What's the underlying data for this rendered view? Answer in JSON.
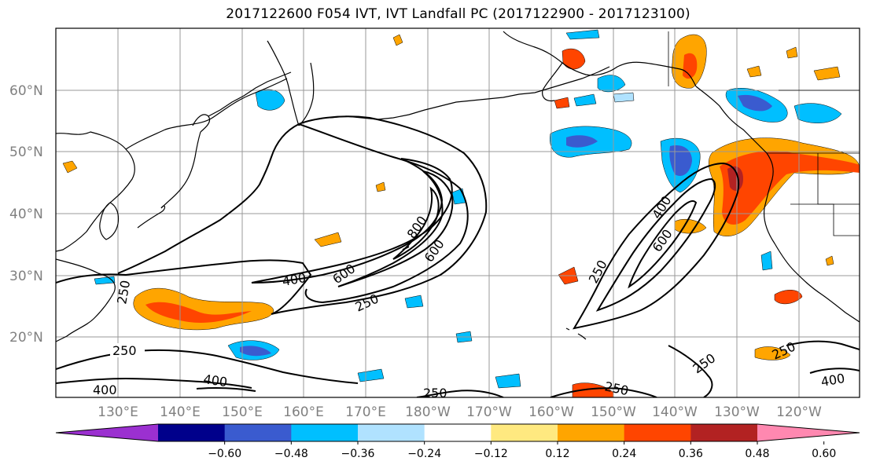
{
  "title": "2017122600 F054 IVT, IVT Landfall PC (2017122900 - 2017123100)",
  "latitudes": [
    "60°N",
    "50°N",
    "40°N",
    "30°N",
    "20°N"
  ],
  "longitudes": [
    "130°E",
    "140°E",
    "150°E",
    "160°E",
    "170°E",
    "180°W",
    "170°W",
    "160°W",
    "150°W",
    "140°W",
    "130°W",
    "120°W"
  ],
  "contour_levels": [
    250,
    400,
    600,
    800
  ],
  "contour_labels": [
    "250",
    "400",
    "400",
    "800",
    "600",
    "250",
    "250",
    "400",
    "600",
    "250",
    "400",
    "600",
    "250",
    "250",
    "250",
    "250",
    "400"
  ],
  "colorbar": {
    "ticks": [
      "−0.60",
      "−0.48",
      "−0.36",
      "−0.24",
      "−0.12",
      "0.12",
      "0.24",
      "0.36",
      "0.48",
      "0.60"
    ],
    "colors": [
      "#9b30d0",
      "#00008b",
      "#3a5bcf",
      "#00bfff",
      "#b0e2ff",
      "#ffffff",
      "#ffe980",
      "#ffa500",
      "#ff4500",
      "#b22222",
      "#ff88b0"
    ]
  }
}
